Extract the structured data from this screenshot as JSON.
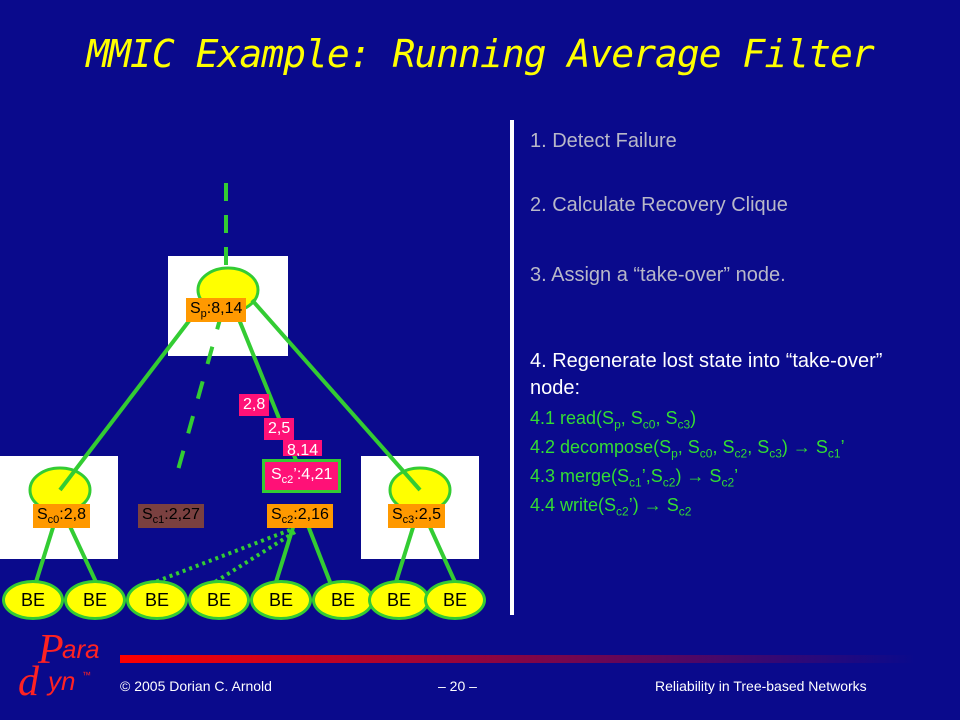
{
  "slide": {
    "title": "MMIC Example: Running Average Filter"
  },
  "steps": {
    "s1": "1. Detect Failure",
    "s2": "2. Calculate Recovery Clique",
    "s3": "3. Assign a “take-over” node.",
    "s4": "4. Regenerate lost state into “take-over” node:"
  },
  "substeps": {
    "s41": {
      "pre": "4.1 read(S",
      "a": "p",
      "b": ", S",
      "c": "c0",
      "d": ", S",
      "e": "c3",
      "f": ")"
    },
    "s42": {
      "pre": "4.2 decompose(S",
      "a": "p",
      "b": ", S",
      "c": "c0",
      "d": ", S",
      "e": "c2",
      "f": ", S",
      "g": "c3",
      "h": ") → S",
      "i": "c1",
      "j": "’"
    },
    "s43": {
      "pre": "4.3 merge(S",
      "a": "c1",
      "b": "’,S",
      "c": "c2",
      "d": ") → S",
      "e": "c2",
      "f": "’"
    },
    "s44": {
      "pre": "4.4 write(S",
      "a": "c2",
      "b": "’) → S",
      "c": "c2"
    }
  },
  "tree": {
    "root": {
      "s": "S",
      "sub": "p",
      "val": ":8,14"
    },
    "c0": {
      "s": "S",
      "sub": "c0",
      "val": ":2,8"
    },
    "c1": {
      "s": "S",
      "sub": "c1",
      "val": ":2,27"
    },
    "c2": {
      "s": "S",
      "sub": "c2",
      "val": ":2,16"
    },
    "c3": {
      "s": "S",
      "sub": "c3",
      "val": ":2,5"
    },
    "takeover": {
      "s": "S",
      "sub": "c2",
      "val": "’:4,21"
    },
    "msg1": "2,8",
    "msg2": "2,5",
    "msg3": "8,14",
    "be_label": "BE"
  },
  "footer": {
    "copyright": "© 2005 Dorian C. Arnold",
    "page": "– 20 –",
    "topic": "Reliability in Tree-based Networks"
  },
  "logo": {
    "text1": "P",
    "text2": "ara",
    "text3": "d",
    "text4": "yn",
    "tm": "™"
  },
  "colors": {
    "background": "#0A0A8C",
    "title": "#FFFF00",
    "node": "#FFFF00",
    "edge": "#33CC33",
    "label": "#FF9900",
    "message": "#FF1177"
  }
}
